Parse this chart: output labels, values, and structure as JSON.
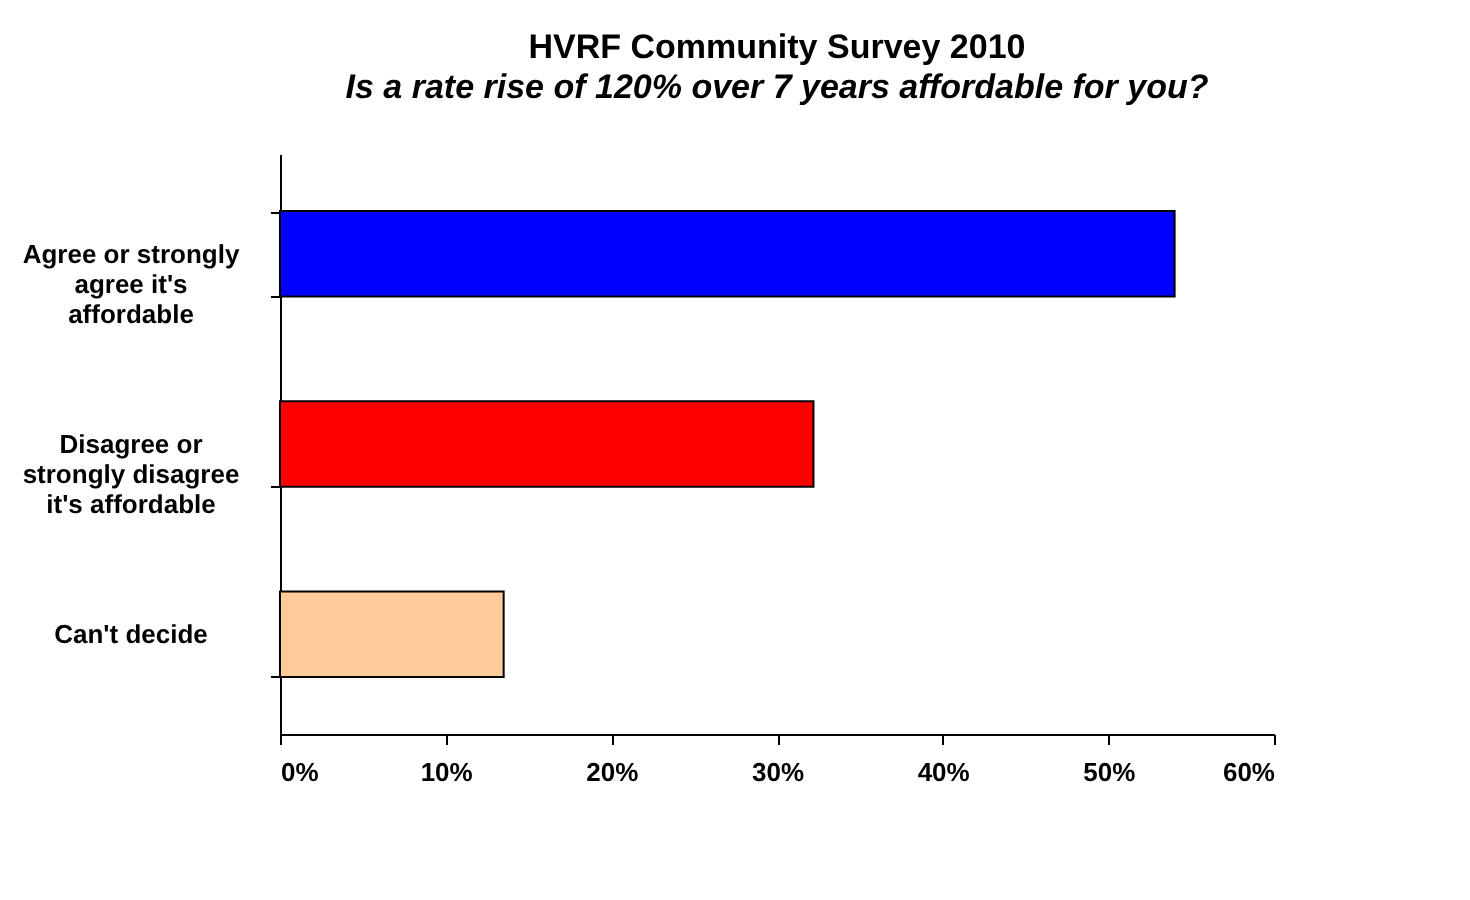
{
  "chart_data": {
    "type": "bar",
    "orientation": "horizontal",
    "title": "HVRF Community Survey 2010",
    "subtitle": "Is a rate rise of 120% over 7 years affordable for you?",
    "categories": [
      "Agree or strongly agree it's affordable",
      "Disagree or strongly disagree it's affordable",
      "Can't decide"
    ],
    "values": [
      54.0,
      32.2,
      13.5
    ],
    "colors": [
      "#0000ff",
      "#ff0000",
      "#ffcc99"
    ],
    "xlim": [
      0,
      60
    ],
    "xticks": [
      {
        "value": 0,
        "label": "0%"
      },
      {
        "value": 10,
        "label": "10%"
      },
      {
        "value": 20,
        "label": "20%"
      },
      {
        "value": 30,
        "label": "30%"
      },
      {
        "value": 40,
        "label": "40%"
      },
      {
        "value": 50,
        "label": "50%"
      },
      {
        "value": 60,
        "label": "60%"
      }
    ],
    "grid": false,
    "legend": false
  }
}
